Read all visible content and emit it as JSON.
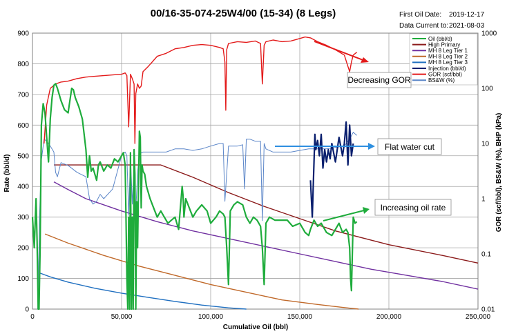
{
  "header": {
    "first_oil_label": "First Oil Date:",
    "first_oil_value": "2019-12-17",
    "data_current_label": "Data Current to:",
    "data_current_value": "2021-08-03"
  },
  "chart_data": {
    "type": "line",
    "title": "00/16-35-074-25W4/00 (15-34) (8 Legs)",
    "xlabel": "Cumulative Oil (bbl)",
    "ylabel": "Rate (bbl/d)",
    "y2label": "GOR (scf/bbl), BS&W (%), BHP (kPa)",
    "xlim": [
      0,
      250000
    ],
    "ylim": [
      0,
      900
    ],
    "y2lim": [
      0.01,
      1000
    ],
    "y2scale": "log",
    "grid": true,
    "legend_position": "top-right",
    "x_ticks": [
      "0",
      "50,000",
      "100,000",
      "150,000",
      "200,000",
      "250,000"
    ],
    "y_ticks": [
      "0",
      "100",
      "200",
      "300",
      "400",
      "500",
      "600",
      "700",
      "800",
      "900"
    ],
    "y2_ticks": [
      "0.01",
      "0.1",
      "1",
      "10",
      "100",
      "1000"
    ],
    "series": [
      {
        "name": "Oil (bbl/d)",
        "axis": "left",
        "color": "#1fac3c",
        "width": 2.2,
        "x": [
          0,
          1000,
          2000,
          2600,
          3200,
          3700,
          4300,
          5000,
          6000,
          7000,
          8000,
          9000,
          10000,
          11000,
          12000,
          13000,
          14000,
          15000,
          16000,
          18000,
          20000,
          22000,
          23000,
          24000,
          26000,
          28000,
          30000,
          31000,
          32000,
          33000,
          34000,
          35000,
          36000,
          37000,
          38000,
          40000,
          42000,
          44000,
          46000,
          48000,
          50000,
          51000,
          52000,
          52500,
          53000,
          53500,
          54000,
          54500,
          55000,
          55500,
          56000,
          56500,
          57000,
          57500,
          58000,
          58500,
          59000,
          59500,
          60000,
          60500,
          61000,
          61500,
          62000,
          63000,
          64000,
          66000,
          68000,
          70000,
          72000,
          74000,
          76000,
          78000,
          80000,
          82000,
          84000,
          84500,
          85000,
          86000,
          88000,
          90000,
          92000,
          95000,
          98000,
          100000,
          103000,
          105000,
          107000,
          108000,
          109000,
          110000,
          111000,
          113000,
          115000,
          118000,
          120000,
          122000,
          124000,
          126000,
          128000,
          129000,
          130000,
          131000,
          133000,
          136000,
          140000,
          143000,
          146000,
          150000,
          153000,
          155000,
          156000,
          158000,
          160000,
          162000,
          165000,
          168000,
          170000,
          172000,
          174000,
          176000,
          177000,
          178000,
          178500,
          179000,
          180000,
          181000,
          182000
        ],
        "y": [
          300,
          200,
          360,
          220,
          0,
          0,
          200,
          600,
          670,
          640,
          560,
          480,
          620,
          690,
          730,
          735,
          720,
          700,
          680,
          650,
          640,
          720,
          715,
          690,
          660,
          620,
          520,
          430,
          500,
          450,
          460,
          440,
          420,
          470,
          480,
          450,
          470,
          460,
          490,
          480,
          500,
          510,
          470,
          300,
          100,
          0,
          300,
          0,
          510,
          0,
          300,
          0,
          520,
          440,
          0,
          350,
          200,
          400,
          580,
          560,
          330,
          470,
          450,
          440,
          400,
          360,
          330,
          300,
          320,
          300,
          280,
          290,
          300,
          260,
          400,
          370,
          300,
          360,
          330,
          300,
          320,
          340,
          320,
          280,
          300,
          320,
          310,
          300,
          200,
          80,
          320,
          340,
          350,
          340,
          300,
          280,
          300,
          290,
          270,
          200,
          80,
          280,
          300,
          290,
          290,
          290,
          270,
          280,
          250,
          240,
          260,
          290,
          270,
          280,
          250,
          240,
          260,
          280,
          250,
          260,
          250,
          200,
          100,
          60,
          300,
          280,
          285
        ]
      },
      {
        "name": "High Primary",
        "axis": "left",
        "color": "#8b1a1a",
        "width": 1.4,
        "x": [
          12000,
          70000,
          72000,
          90000,
          110000,
          130000,
          150000,
          170000,
          200000,
          230000,
          250000
        ],
        "y": [
          470,
          470,
          470,
          430,
          380,
          335,
          295,
          255,
          210,
          175,
          150
        ]
      },
      {
        "name": "MH 8 Leg Tier 1",
        "axis": "left",
        "color": "#7030a0",
        "width": 1.4,
        "x": [
          12000,
          20000,
          30000,
          50000,
          70000,
          90000,
          110000,
          130000,
          150000,
          170000,
          190000,
          210000,
          230000,
          250000
        ],
        "y": [
          415,
          390,
          360,
          320,
          285,
          255,
          230,
          205,
          180,
          155,
          130,
          110,
          90,
          65
        ]
      },
      {
        "name": "MH 8 Leg Tier 2",
        "axis": "left",
        "color": "#c0692a",
        "width": 1.4,
        "x": [
          7000,
          20000,
          40000,
          60000,
          80000,
          100000,
          120000,
          140000,
          160000,
          175000,
          183000
        ],
        "y": [
          245,
          215,
          175,
          140,
          110,
          80,
          55,
          30,
          15,
          5,
          0
        ]
      },
      {
        "name": "MH 8 Leg Tier 3",
        "axis": "left",
        "color": "#1f6fc0",
        "width": 1.4,
        "x": [
          4000,
          10000,
          20000,
          35000,
          50000,
          65000,
          80000,
          95000,
          110000,
          120000
        ],
        "y": [
          118,
          105,
          88,
          68,
          52,
          38,
          25,
          13,
          4,
          0
        ]
      },
      {
        "name": "Injection (bbl/d)",
        "axis": "left",
        "color": "#0a1f6e",
        "width": 2.2,
        "x": [
          156000,
          157000,
          158000,
          158500,
          159000,
          160000,
          161000,
          162000,
          163000,
          164000,
          165000,
          166000,
          167000,
          168000,
          170000,
          172000,
          174000,
          175000,
          176000,
          177000,
          178000,
          179000,
          180000
        ],
        "y": [
          420,
          300,
          480,
          570,
          520,
          550,
          500,
          570,
          460,
          520,
          480,
          520,
          490,
          540,
          480,
          560,
          500,
          540,
          610,
          470,
          600,
          500,
          540
        ]
      },
      {
        "name": "GOR (scf/bbl)",
        "axis": "right",
        "color": "#e31a1a",
        "width": 1.4,
        "x": [
          6500,
          8000,
          10000,
          13000,
          16000,
          20000,
          25000,
          30000,
          35000,
          40000,
          45000,
          50000,
          52000,
          53000,
          54000,
          55000,
          56000,
          57000,
          57500,
          58000,
          59000,
          60000,
          61000,
          62000,
          65000,
          70000,
          75000,
          80000,
          85000,
          90000,
          95000,
          100000,
          105000,
          107000,
          108000,
          108500,
          109000,
          110000,
          115000,
          120000,
          125000,
          128000,
          129000,
          130000,
          131000,
          135000,
          140000,
          145000,
          150000,
          153000,
          156000,
          160000,
          165000,
          170000,
          175000,
          177000,
          178000,
          179000,
          180000,
          182000
        ],
        "y": [
          10,
          50,
          100,
          120,
          130,
          135,
          150,
          160,
          165,
          170,
          175,
          180,
          190,
          170,
          20,
          180,
          150,
          120,
          10,
          80,
          120,
          100,
          110,
          200,
          250,
          380,
          430,
          520,
          550,
          600,
          620,
          600,
          550,
          520,
          300,
          40,
          500,
          650,
          700,
          680,
          720,
          650,
          120,
          600,
          700,
          750,
          700,
          720,
          800,
          850,
          820,
          700,
          600,
          500,
          400,
          250,
          200,
          300,
          400,
          450
        ]
      },
      {
        "name": "BS&W (%)",
        "axis": "right",
        "color": "#5a85c8",
        "width": 1.0,
        "x": [
          3000,
          4000,
          5000,
          6500,
          8000,
          10000,
          12000,
          13000,
          14000,
          16000,
          20000,
          25000,
          30000,
          32000,
          34000,
          36000,
          38000,
          40000,
          45000,
          50000,
          52000,
          53000,
          54000,
          55000,
          56000,
          57000,
          58000,
          59000,
          60000,
          62000,
          65000,
          70000,
          75000,
          80000,
          85000,
          90000,
          95000,
          100000,
          105000,
          107000,
          108000,
          110000,
          115000,
          118000,
          119000,
          120000,
          122000,
          125000,
          128000,
          129000,
          130000,
          131000,
          135000,
          140000,
          145000,
          150000,
          155000,
          160000,
          165000,
          170000,
          175000,
          178000,
          180000,
          182000
        ],
        "y": [
          0.01,
          0.5,
          5,
          12,
          11,
          9,
          7,
          3,
          2.5,
          4.5,
          4,
          3,
          2.5,
          1,
          0.8,
          0.9,
          1.2,
          1,
          1.5,
          6,
          7,
          6,
          0.5,
          6,
          0.8,
          4,
          0.6,
          3,
          6.5,
          7,
          7,
          7,
          7,
          8,
          8,
          7.5,
          8,
          9,
          10,
          10,
          0.9,
          9,
          9,
          9.5,
          1.5,
          12,
          12,
          11,
          11,
          0.4,
          10,
          8,
          7,
          7,
          7,
          7.5,
          8,
          8,
          8,
          8.5,
          9,
          12,
          16,
          14
        ]
      }
    ]
  },
  "annotations": [
    {
      "label": "Decreasing GOR",
      "arrow_color": "#e31a1a"
    },
    {
      "label": "Flat water cut",
      "arrow_color": "#2e8fe0"
    },
    {
      "label": "Increasing oil rate",
      "arrow_color": "#1fac3c"
    }
  ]
}
